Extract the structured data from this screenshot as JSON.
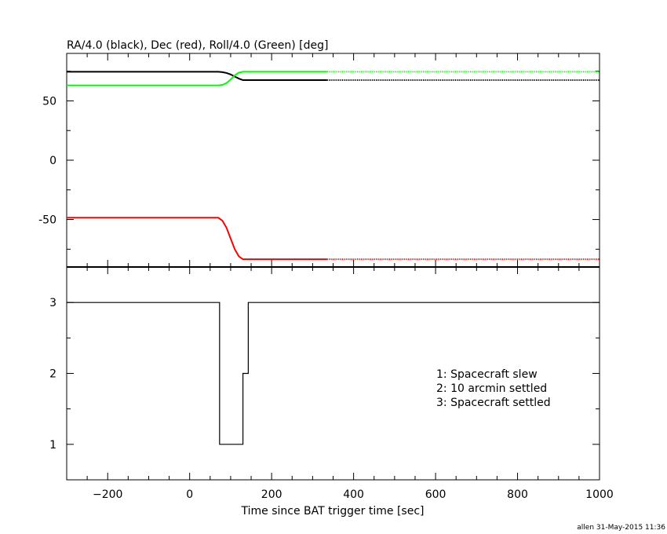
{
  "footer_stamp": "allen 31-May-2015 11:36",
  "chart_data": [
    {
      "type": "line",
      "title": "RA/4.0 (black), Dec (red), Roll/4.0 (Green) [deg]",
      "xlim": [
        -300,
        1000
      ],
      "ylim": [
        -90,
        90
      ],
      "y_ticks": [
        50,
        0,
        -50
      ],
      "y_tick_labels": [
        "50",
        "0",
        "-50"
      ],
      "grid": false,
      "series": [
        {
          "name": "RA/4.0",
          "color": "#000000",
          "x": [
            -300,
            70,
            80,
            90,
            100,
            110,
            120,
            130,
            335,
            1000
          ],
          "y": [
            74.5,
            74.5,
            74.2,
            73.5,
            72.3,
            70.5,
            68.8,
            67.5,
            67.5,
            67.5
          ],
          "dotted_after_x": 335
        },
        {
          "name": "Dec",
          "color": "#ff0000",
          "x": [
            -300,
            70,
            80,
            90,
            100,
            110,
            120,
            130,
            335,
            1000
          ],
          "y": [
            -48.5,
            -48.5,
            -51,
            -57,
            -66,
            -75,
            -81,
            -83.5,
            -83.5,
            -83.5
          ],
          "dotted_after_x": 335
        },
        {
          "name": "Roll/4.0",
          "color": "#00ff00",
          "x": [
            -300,
            70,
            80,
            90,
            100,
            110,
            120,
            130,
            335,
            1000
          ],
          "y": [
            63,
            63,
            63.5,
            65,
            68,
            71.5,
            73.8,
            74.5,
            74.5,
            74.5
          ],
          "dotted_after_x": 335
        }
      ]
    },
    {
      "type": "line",
      "step": true,
      "xlabel": "Time since BAT trigger time [sec]",
      "xlim": [
        -300,
        1000
      ],
      "ylim": [
        0.5,
        3.5
      ],
      "x_ticks": [
        -200,
        0,
        200,
        400,
        600,
        800,
        1000
      ],
      "x_tick_labels": [
        "−200",
        "0",
        "200",
        "400",
        "600",
        "800",
        "1000"
      ],
      "y_ticks": [
        1,
        2,
        3
      ],
      "y_tick_labels": [
        "1",
        "2",
        "3"
      ],
      "grid": false,
      "series": [
        {
          "color": "#000000",
          "x": [
            -300,
            73,
            73,
            130,
            130,
            143,
            143,
            1000
          ],
          "y": [
            3,
            3,
            1,
            1,
            2,
            2,
            3,
            3
          ]
        }
      ],
      "annotations": [
        "1: Spacecraft slew",
        "2: 10 arcmin settled",
        "3: Spacecraft settled"
      ]
    }
  ]
}
